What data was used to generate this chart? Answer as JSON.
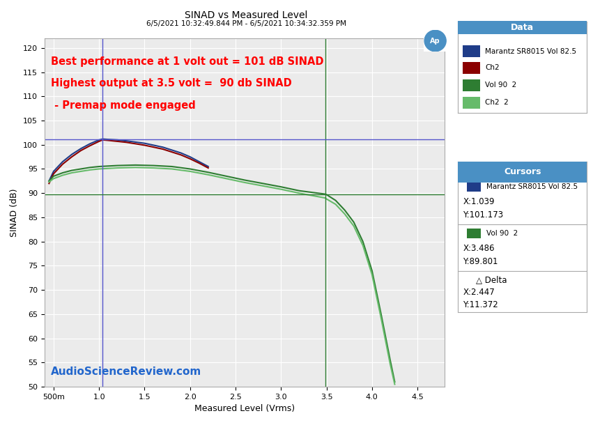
{
  "title": "SINAD vs Measured Level",
  "subtitle": "6/5/2021 10:32:49.844 PM - 6/5/2021 10:34:32.359 PM",
  "xlabel": "Measured Level (Vrms)",
  "ylabel": "SINAD (dB)",
  "xlim_min": 0.4,
  "xlim_max": 4.8,
  "ylim": [
    50,
    122
  ],
  "yticks": [
    50,
    55,
    60,
    65,
    70,
    75,
    80,
    85,
    90,
    95,
    100,
    105,
    110,
    115,
    120
  ],
  "xtick_labels": [
    "500m",
    "1.0",
    "1.5",
    "2.0",
    "2.5",
    "3.0",
    "3.5",
    "4.0",
    "4.5"
  ],
  "xtick_vals": [
    0.5,
    1.0,
    1.5,
    2.0,
    2.5,
    3.0,
    3.5,
    4.0,
    4.5
  ],
  "background_color": "#ffffff",
  "plot_bg_color": "#ebebeb",
  "grid_color": "#ffffff",
  "annotation1": "Best performance at 1 volt out = 101 dB SINAD",
  "annotation2": "Highest output at 3.5 volt =  90 db SINAD",
  "annotation3": " - Premap mode engaged",
  "watermark": "AudioScienceReview.com",
  "cursor_v1_x": 1.039,
  "cursor_v1_y": 101.173,
  "cursor_v2_x": 3.486,
  "cursor_v2_y": 89.801,
  "series": {
    "marantz_ch1": {
      "label": "Marantz SR8015 Vol 82.5",
      "color": "#1f3c88",
      "x": [
        0.45,
        0.5,
        0.6,
        0.7,
        0.8,
        0.9,
        1.0,
        1.039,
        1.1,
        1.2,
        1.3,
        1.5,
        1.7,
        1.9,
        2.0,
        2.1,
        2.2
      ],
      "y": [
        92.5,
        94.5,
        96.5,
        98.0,
        99.2,
        100.2,
        101.0,
        101.173,
        101.1,
        101.0,
        100.8,
        100.3,
        99.5,
        98.3,
        97.5,
        96.5,
        95.5
      ]
    },
    "ch2": {
      "label": "Ch2",
      "color": "#8b0000",
      "x": [
        0.45,
        0.5,
        0.6,
        0.7,
        0.8,
        0.9,
        1.0,
        1.039,
        1.1,
        1.2,
        1.3,
        1.5,
        1.7,
        1.9,
        2.0,
        2.1,
        2.2
      ],
      "y": [
        92.0,
        94.0,
        96.0,
        97.5,
        98.8,
        99.8,
        100.7,
        101.0,
        100.9,
        100.7,
        100.5,
        99.9,
        99.1,
        97.9,
        97.1,
        96.2,
        95.2
      ]
    },
    "vol90_ch1": {
      "label": "Vol 90  2",
      "color": "#2e7d32",
      "x": [
        0.45,
        0.5,
        0.6,
        0.7,
        0.8,
        0.9,
        1.0,
        1.2,
        1.4,
        1.6,
        1.8,
        2.0,
        2.2,
        2.4,
        2.6,
        2.8,
        3.0,
        3.2,
        3.486,
        3.5,
        3.6,
        3.7,
        3.8,
        3.9,
        4.0,
        4.1,
        4.2,
        4.25
      ],
      "y": [
        92.5,
        93.5,
        94.2,
        94.7,
        95.0,
        95.3,
        95.5,
        95.7,
        95.8,
        95.7,
        95.5,
        95.0,
        94.3,
        93.5,
        92.7,
        92.0,
        91.3,
        90.5,
        89.801,
        89.7,
        88.5,
        86.5,
        84.0,
        80.0,
        74.0,
        65.0,
        55.5,
        51.0
      ]
    },
    "vol90_ch2": {
      "label": "Ch2  2",
      "color": "#66bb6a",
      "x": [
        0.45,
        0.5,
        0.6,
        0.7,
        0.8,
        0.9,
        1.0,
        1.2,
        1.4,
        1.6,
        1.8,
        2.0,
        2.2,
        2.4,
        2.6,
        2.8,
        3.0,
        3.2,
        3.486,
        3.5,
        3.6,
        3.7,
        3.8,
        3.9,
        4.0,
        4.1,
        4.2,
        4.25
      ],
      "y": [
        92.3,
        93.0,
        93.7,
        94.2,
        94.5,
        94.8,
        95.0,
        95.2,
        95.3,
        95.2,
        95.0,
        94.5,
        93.8,
        93.0,
        92.2,
        91.5,
        90.8,
        90.0,
        89.0,
        88.8,
        87.7,
        85.7,
        83.2,
        79.2,
        73.2,
        64.2,
        54.7,
        50.5
      ]
    }
  },
  "legend_data": {
    "title": "Data",
    "title_bg": "#4a90c4",
    "entries": [
      {
        "label": "Marantz SR8015 Vol 82.5",
        "color": "#1f3c88"
      },
      {
        "label": "Ch2",
        "color": "#8b0000"
      },
      {
        "label": "Vol 90  2",
        "color": "#2e7d32"
      },
      {
        "label": "Ch2  2",
        "color": "#66bb6a"
      }
    ]
  },
  "legend_cursors": {
    "title": "Cursors",
    "title_bg": "#4a90c4",
    "entry1_label": "Marantz SR8015 Vol 82.5",
    "entry1_color": "#1f3c88",
    "entry1_x": "X:1.039",
    "entry1_y": "Y:101.173",
    "entry2_label": "Vol 90  2",
    "entry2_color": "#2e7d32",
    "entry2_x": "X:3.486",
    "entry2_y": "Y:89.801",
    "delta_label": "Delta",
    "delta_x": "X:2.447",
    "delta_y": "Y:11.372"
  }
}
